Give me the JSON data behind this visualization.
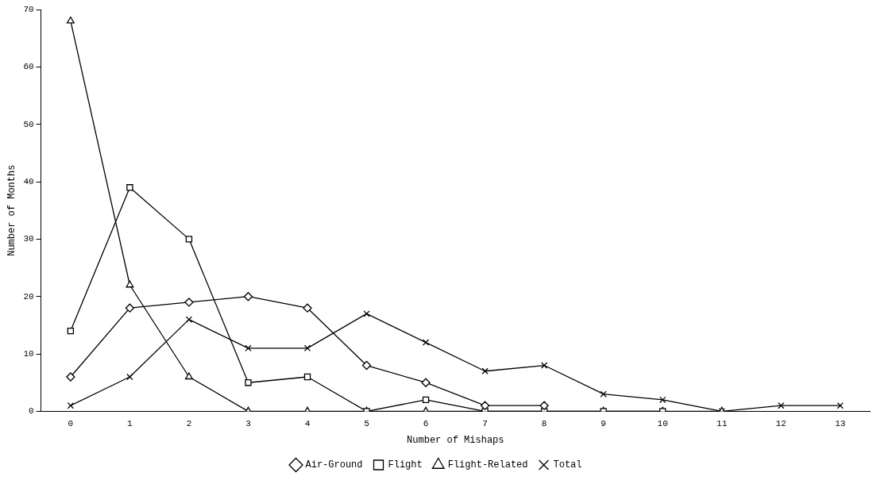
{
  "chart_data": {
    "type": "line",
    "xlabel": "Number of Mishaps",
    "ylabel": "Number of Months",
    "categories": [
      "0",
      "1",
      "2",
      "3",
      "4",
      "5",
      "6",
      "7",
      "8",
      "9",
      "10",
      "11",
      "12",
      "13"
    ],
    "series": [
      {
        "name": "Air-Ground",
        "color": "#000000",
        "marker": "diamond",
        "values": [
          6,
          18,
          19,
          20,
          18,
          8,
          5,
          1,
          1,
          null,
          null,
          null,
          null,
          null
        ]
      },
      {
        "name": "Flight",
        "color": "#000000",
        "marker": "square",
        "values": [
          14,
          39,
          30,
          5,
          6,
          0,
          2,
          0,
          0,
          0,
          0,
          null,
          null,
          null
        ]
      },
      {
        "name": "Flight-Related",
        "color": "#000000",
        "marker": "triangle",
        "values": [
          68,
          22,
          6,
          0,
          0,
          0,
          0,
          0,
          0,
          0,
          0,
          0,
          null,
          null
        ]
      },
      {
        "name": "Total",
        "color": "#000000",
        "marker": "cross",
        "values": [
          1,
          6,
          16,
          11,
          11,
          17,
          12,
          7,
          8,
          3,
          2,
          0,
          1,
          1
        ]
      }
    ],
    "ylim": [
      0,
      70
    ],
    "yticks": [
      0,
      10,
      20,
      30,
      40,
      50,
      60,
      70
    ],
    "grid": false,
    "legend": "bottom",
    "line_style": "solid"
  }
}
